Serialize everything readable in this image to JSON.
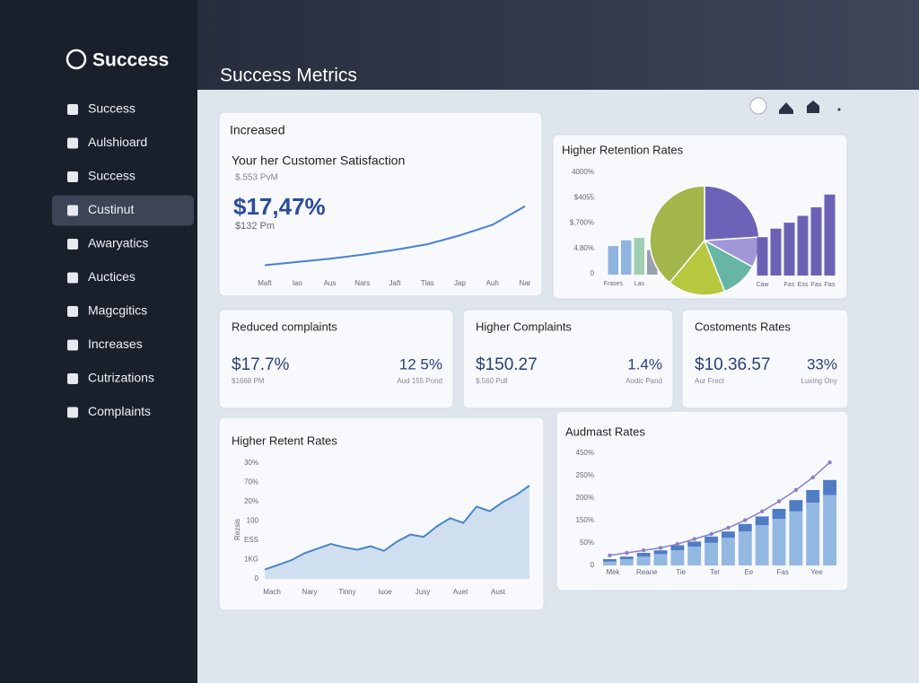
{
  "sidebar": {
    "brand": "Success",
    "items": [
      "Success",
      "Aulshioard",
      "Success",
      "Custinut",
      "Awaryatics",
      "Auctices",
      "Magcgitics",
      "Increases",
      "Cutrizations",
      "Complaints"
    ]
  },
  "header": {
    "title": "Success Metrics"
  },
  "satisfaction": {
    "label": "Increased",
    "title": "Your her Customer Satisfaction",
    "note": "$.553 PvM",
    "value": "$17,47%",
    "sub": "$132 Pm",
    "chart": {
      "type": "line",
      "categories": [
        "Maft",
        "Iao",
        "Aus",
        "Nars",
        "Jaft",
        "Tlas",
        "Jap",
        "Auh",
        "Nar"
      ],
      "values": [
        5,
        9,
        13,
        18,
        24,
        31,
        42,
        55,
        78
      ],
      "ylim": [
        0,
        100
      ],
      "color": "#4a7fd4"
    }
  },
  "retention": {
    "title": "Higher Retention Rates",
    "y_labels": [
      "4000%",
      "$4055",
      "$,700%",
      "4.80%",
      "0"
    ],
    "bars": {
      "type": "bar",
      "categories": [
        "Frases",
        null,
        "Las",
        null
      ],
      "values": [
        35,
        42,
        45,
        30
      ],
      "colors": [
        "#8fb4e0",
        "#8fb4e0",
        "#9fcfb0",
        "#9aa0ad"
      ],
      "ylim": [
        0,
        100
      ]
    },
    "pie": {
      "type": "pie",
      "values": [
        24,
        9,
        11,
        17,
        39
      ],
      "colors": [
        "#6c63b8",
        "#a297d6",
        "#66b5a5",
        "#b5c83e",
        "#a3b64c"
      ]
    },
    "bars2": {
      "type": "bar",
      "categories": [
        "Caw",
        null,
        "Fas",
        "Ess",
        "Fas",
        "Fas"
      ],
      "values": [
        45,
        55,
        62,
        70,
        80,
        95
      ],
      "colors": [
        "#6b62b5",
        "#6b62b5",
        "#6b62b5",
        "#6b62b5",
        "#6b62b5",
        "#6b62b5"
      ],
      "ylim": [
        0,
        100
      ]
    }
  },
  "stats": [
    {
      "title": "Reduced complaints",
      "value": "$17.7%",
      "note": "$1668 PM",
      "value2": "12 5%",
      "note2": "Aud 155 Pond"
    },
    {
      "title": "Higher Complaints",
      "value": "$150.27",
      "note": "$.560 Pull",
      "value2": "1.4%",
      "note2": "Aodic Pand"
    },
    {
      "title": "Costoments Rates",
      "value": "$10.36.57",
      "note": "Aur Frect",
      "value2": "33%",
      "note2": "Luxing Ony"
    }
  ],
  "retent": {
    "title": "Higher Retent Rates",
    "y_axis_label": "Rezsis",
    "y_labels": [
      "30%",
      "70%",
      "20%",
      "100",
      "ESS",
      "1KG",
      "0"
    ],
    "x_labels": [
      "Mach",
      "Nary",
      "Tinny",
      "Iuoe",
      "Jusy",
      "Auet",
      "Aust"
    ],
    "chart": {
      "type": "area",
      "values": [
        8,
        12,
        16,
        22,
        26,
        30,
        27,
        25,
        28,
        24,
        32,
        38,
        36,
        45,
        52,
        48,
        62,
        58,
        66,
        72,
        80
      ],
      "ylim": [
        0,
        100
      ],
      "color": "#4a86c8"
    }
  },
  "audmast": {
    "title": "Audmast Rates",
    "y_labels": [
      "450%",
      "250%",
      "200%",
      "150%",
      "50%",
      "0"
    ],
    "x_labels": [
      "Mek",
      "Reane",
      "Tie",
      "Ter",
      "Ee",
      "Fas",
      "Yee"
    ],
    "chart": {
      "type": "stacked_bar",
      "ylim": [
        0,
        100
      ],
      "series": [
        {
          "color": "#93b8e2",
          "values": [
            3,
            5,
            7,
            9,
            12,
            15,
            18,
            22,
            27,
            32,
            37,
            43,
            50,
            56
          ]
        },
        {
          "color": "#4f7cc4",
          "values": [
            2,
            2,
            3,
            3,
            4,
            4,
            5,
            5,
            6,
            7,
            8,
            9,
            10,
            12
          ]
        }
      ],
      "trend": {
        "color": "#8a7fd0",
        "values": [
          8,
          10,
          12,
          14,
          17,
          21,
          25,
          30,
          36,
          43,
          51,
          60,
          70,
          82
        ]
      }
    }
  }
}
